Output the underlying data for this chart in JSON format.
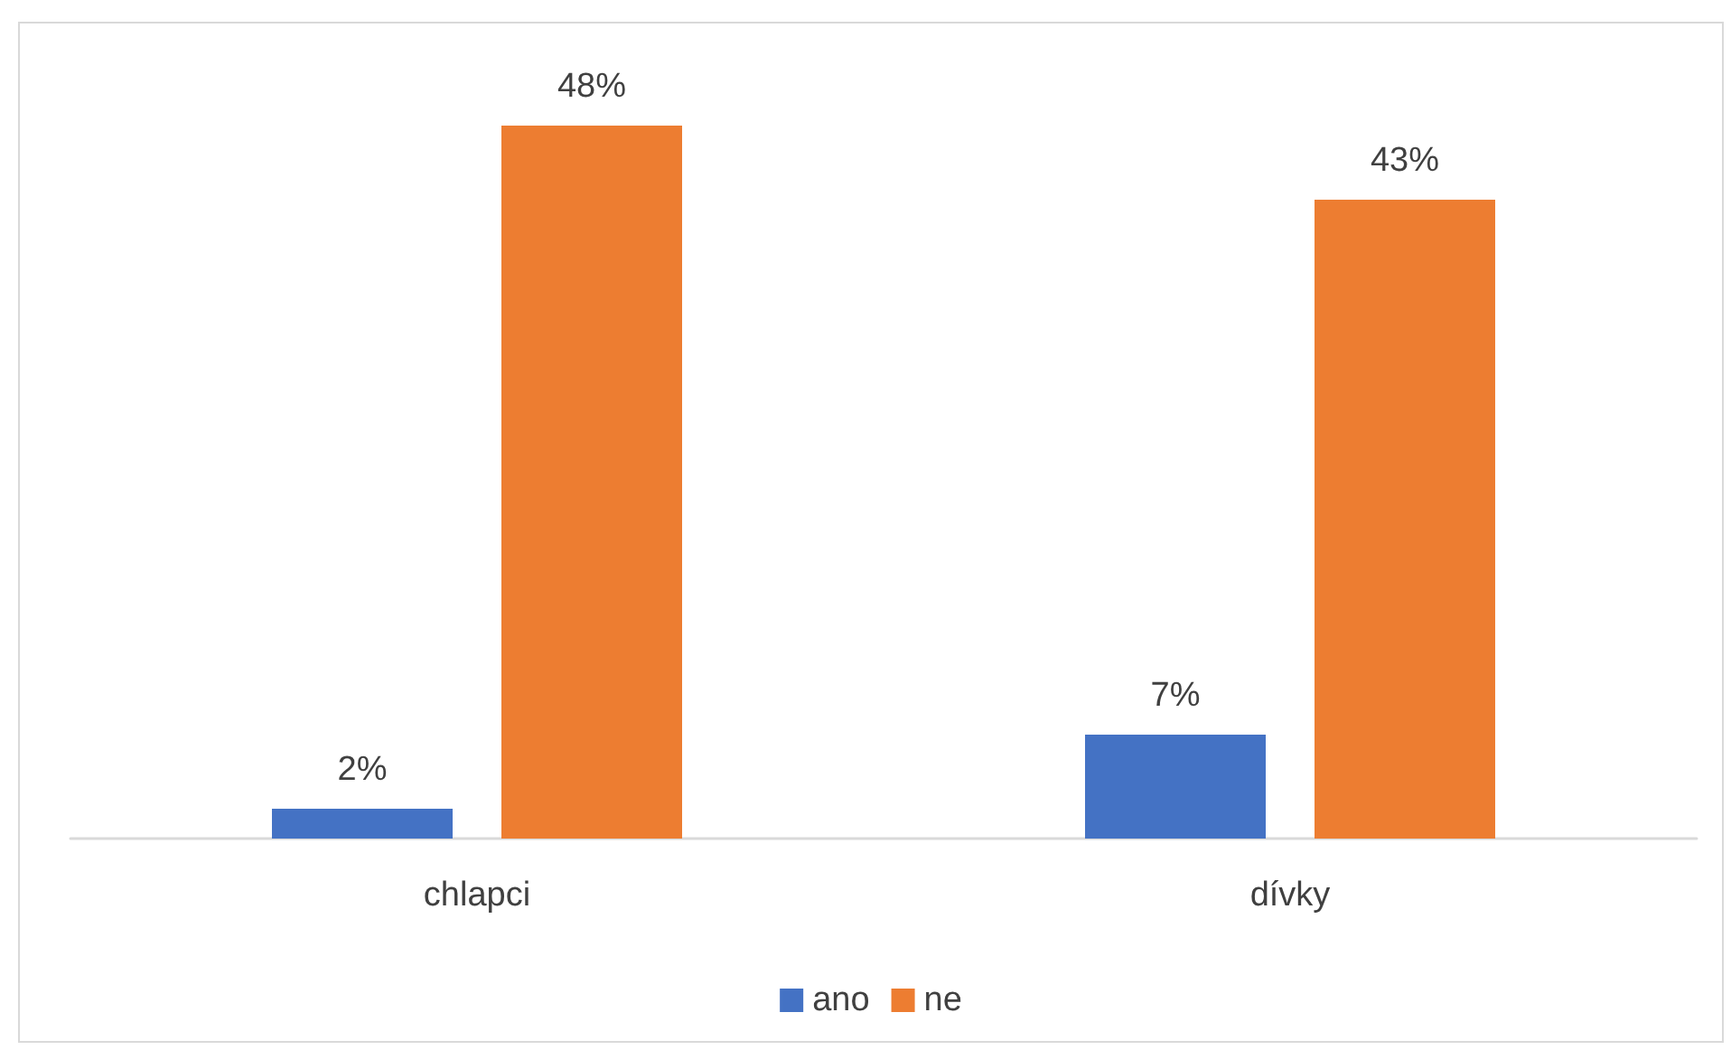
{
  "chart_data": {
    "type": "bar",
    "categories": [
      "chlapci",
      "dívky"
    ],
    "series": [
      {
        "name": "ano",
        "color": "#4472c4",
        "values": [
          2,
          7
        ],
        "value_labels": [
          "2%",
          "7%"
        ]
      },
      {
        "name": "ne",
        "color": "#ed7d31",
        "values": [
          48,
          43
        ],
        "value_labels": [
          "48%",
          "43%"
        ]
      }
    ],
    "legend": "bottom"
  }
}
